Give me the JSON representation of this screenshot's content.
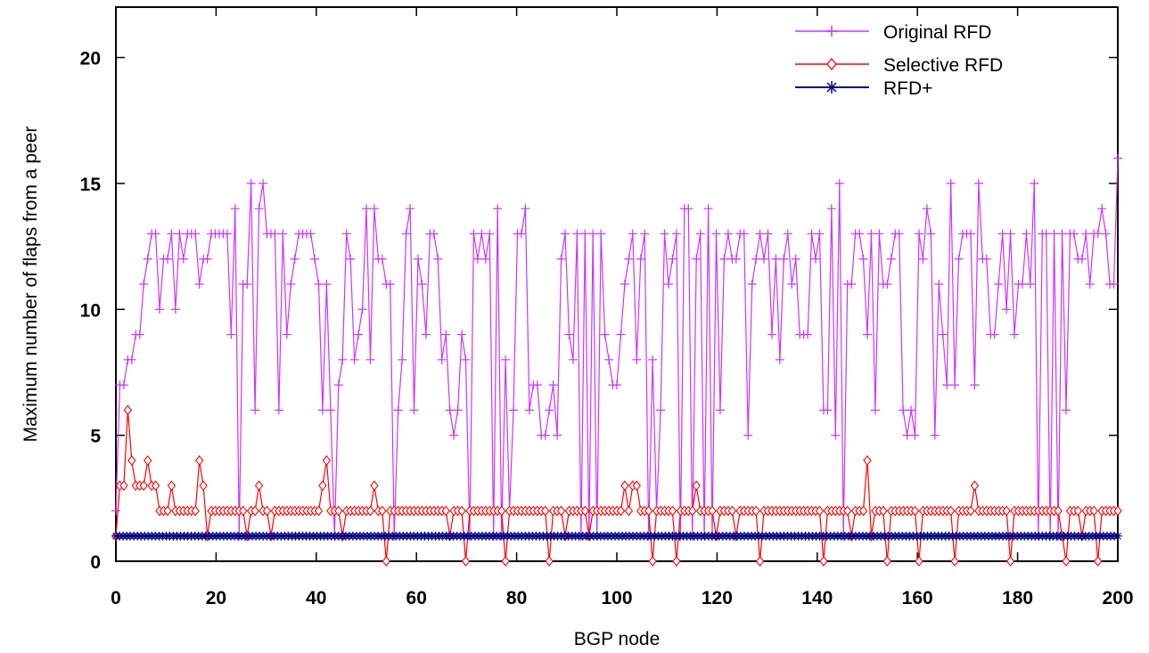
{
  "chart_data": {
    "type": "line",
    "xlabel": "BGP node",
    "ylabel": "Maximum number of flaps from a peer",
    "xlim": [
      0,
      200
    ],
    "ylim": [
      0,
      22
    ],
    "xticks": [
      0,
      20,
      40,
      60,
      80,
      100,
      120,
      140,
      160,
      180,
      200
    ],
    "yticks": [
      0,
      5,
      10,
      15,
      20
    ],
    "grid": false,
    "legend_position": "top-right",
    "series": [
      {
        "name": "Original RFD",
        "color": "#cc33ff",
        "marker": "plus",
        "values": [
          2,
          7,
          7,
          8,
          8,
          9,
          9,
          11,
          12,
          13,
          13,
          10,
          12,
          12,
          13,
          10,
          13,
          12,
          13,
          13,
          13,
          11,
          12,
          12,
          13,
          13,
          13,
          13,
          13,
          9,
          14,
          1,
          11,
          11,
          15,
          6,
          14,
          15,
          13,
          13,
          13,
          6,
          13,
          9,
          11,
          12,
          13,
          13,
          13,
          13,
          12,
          11,
          6,
          11,
          6,
          1,
          7,
          8,
          13,
          12,
          8,
          9,
          10,
          14,
          8,
          14,
          12,
          12,
          11,
          11,
          1,
          6,
          8,
          13,
          14,
          6,
          12,
          11,
          9,
          13,
          13,
          12,
          8,
          9,
          6,
          5,
          6,
          9,
          8,
          1,
          13,
          12,
          13,
          12,
          13,
          1,
          14,
          1,
          8,
          2,
          6,
          13,
          13,
          14,
          6,
          7,
          7,
          5,
          5,
          6,
          7,
          5,
          12,
          13,
          9,
          8,
          13,
          1,
          13,
          1,
          13,
          1,
          13,
          9,
          8,
          7,
          7,
          9,
          11,
          12,
          13,
          8,
          12,
          13,
          1,
          8,
          2,
          6,
          13,
          11,
          12,
          13,
          1,
          14,
          14,
          1,
          12,
          13,
          1,
          14,
          1,
          13,
          6,
          12,
          13,
          12,
          12,
          13,
          13,
          5,
          11,
          12,
          13,
          12,
          13,
          9,
          12,
          8,
          12,
          13,
          11,
          12,
          9,
          9,
          9,
          13,
          12,
          13,
          6,
          6,
          14,
          5,
          15,
          1,
          11,
          11,
          13,
          13,
          12,
          9,
          13,
          6,
          13,
          11,
          11,
          12,
          13,
          13,
          6,
          5,
          6,
          5,
          13,
          12,
          14,
          13,
          5,
          11,
          9,
          7,
          15,
          7,
          12,
          13,
          13,
          13,
          7,
          15,
          12,
          12,
          9,
          9,
          11,
          13,
          10,
          13,
          9,
          11,
          11,
          13,
          11,
          15,
          1,
          13,
          13,
          1,
          13,
          1,
          13,
          6,
          13,
          13,
          12,
          12,
          13,
          11,
          13,
          13,
          14,
          13,
          11,
          11,
          16
        ]
      },
      {
        "name": "Selective RFD",
        "color": "#ff0000",
        "marker": "diamond",
        "values": [
          1,
          3,
          3,
          6,
          4,
          3,
          3,
          3,
          4,
          3,
          3,
          2,
          2,
          2,
          3,
          2,
          2,
          2,
          2,
          2,
          2,
          4,
          3,
          1,
          2,
          2,
          2,
          2,
          2,
          2,
          2,
          2,
          2,
          1,
          2,
          2,
          3,
          2,
          2,
          1,
          2,
          2,
          2,
          2,
          2,
          2,
          2,
          2,
          2,
          2,
          2,
          2,
          3,
          4,
          2,
          2,
          2,
          1,
          2,
          2,
          2,
          2,
          2,
          2,
          2,
          3,
          2,
          2,
          0,
          2,
          2,
          2,
          2,
          2,
          2,
          2,
          2,
          2,
          2,
          2,
          2,
          2,
          2,
          2,
          1,
          2,
          2,
          2,
          0,
          2,
          2,
          2,
          2,
          2,
          2,
          2,
          2,
          2,
          0,
          2,
          2,
          2,
          2,
          2,
          2,
          2,
          2,
          2,
          2,
          0,
          2,
          2,
          2,
          1,
          2,
          2,
          2,
          2,
          2,
          1,
          2,
          2,
          2,
          2,
          2,
          2,
          2,
          2,
          3,
          2,
          3,
          3,
          2,
          2,
          2,
          0,
          2,
          2,
          2,
          2,
          2,
          0,
          2,
          2,
          2,
          2,
          3,
          2,
          2,
          2,
          2,
          1,
          2,
          2,
          2,
          2,
          1,
          2,
          2,
          2,
          2,
          2,
          0,
          2,
          2,
          2,
          2,
          2,
          2,
          2,
          2,
          2,
          2,
          2,
          2,
          2,
          2,
          2,
          0,
          2,
          2,
          2,
          2,
          2,
          2,
          1,
          2,
          2,
          2,
          4,
          1,
          2,
          2,
          2,
          0,
          2,
          2,
          2,
          2,
          2,
          2,
          2,
          0,
          2,
          2,
          2,
          2,
          2,
          2,
          2,
          2,
          0,
          2,
          2,
          2,
          2,
          3,
          2,
          2,
          2,
          2,
          2,
          2,
          2,
          2,
          0,
          2,
          2,
          2,
          2,
          2,
          2,
          2,
          2,
          2,
          2,
          2,
          2,
          1,
          0,
          2,
          2,
          2,
          1,
          2,
          2,
          2,
          0,
          2,
          2,
          2,
          2,
          2
        ]
      },
      {
        "name": "RFD+",
        "color": "#000080",
        "marker": "star",
        "values": [
          1
        ]
      }
    ]
  }
}
